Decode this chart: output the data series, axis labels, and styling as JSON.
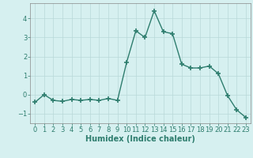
{
  "x": [
    0,
    1,
    2,
    3,
    4,
    5,
    6,
    7,
    8,
    9,
    10,
    11,
    12,
    13,
    14,
    15,
    16,
    17,
    18,
    19,
    20,
    21,
    22,
    23
  ],
  "y": [
    -0.4,
    0.0,
    -0.3,
    -0.35,
    -0.25,
    -0.3,
    -0.25,
    -0.3,
    -0.2,
    -0.3,
    1.7,
    3.35,
    3.0,
    4.4,
    3.3,
    3.2,
    1.6,
    1.4,
    1.4,
    1.5,
    1.1,
    -0.05,
    -0.8,
    -1.2
  ],
  "line_color": "#2e7d6e",
  "marker": "+",
  "markersize": 4,
  "markeredgewidth": 1.2,
  "linewidth": 1.0,
  "bg_color": "#d6f0f0",
  "grid_color": "#b8d8d8",
  "xlabel": "Humidex (Indice chaleur)",
  "xlabel_fontsize": 7,
  "tick_fontsize": 6,
  "ylim": [
    -1.5,
    4.8
  ],
  "yticks": [
    -1,
    0,
    1,
    2,
    3,
    4
  ],
  "xtick_labels": [
    "0",
    "1",
    "2",
    "3",
    "4",
    "5",
    "6",
    "7",
    "8",
    "9",
    "10",
    "11",
    "12",
    "13",
    "14",
    "15",
    "16",
    "17",
    "18",
    "19",
    "20",
    "21",
    "22",
    "23"
  ]
}
